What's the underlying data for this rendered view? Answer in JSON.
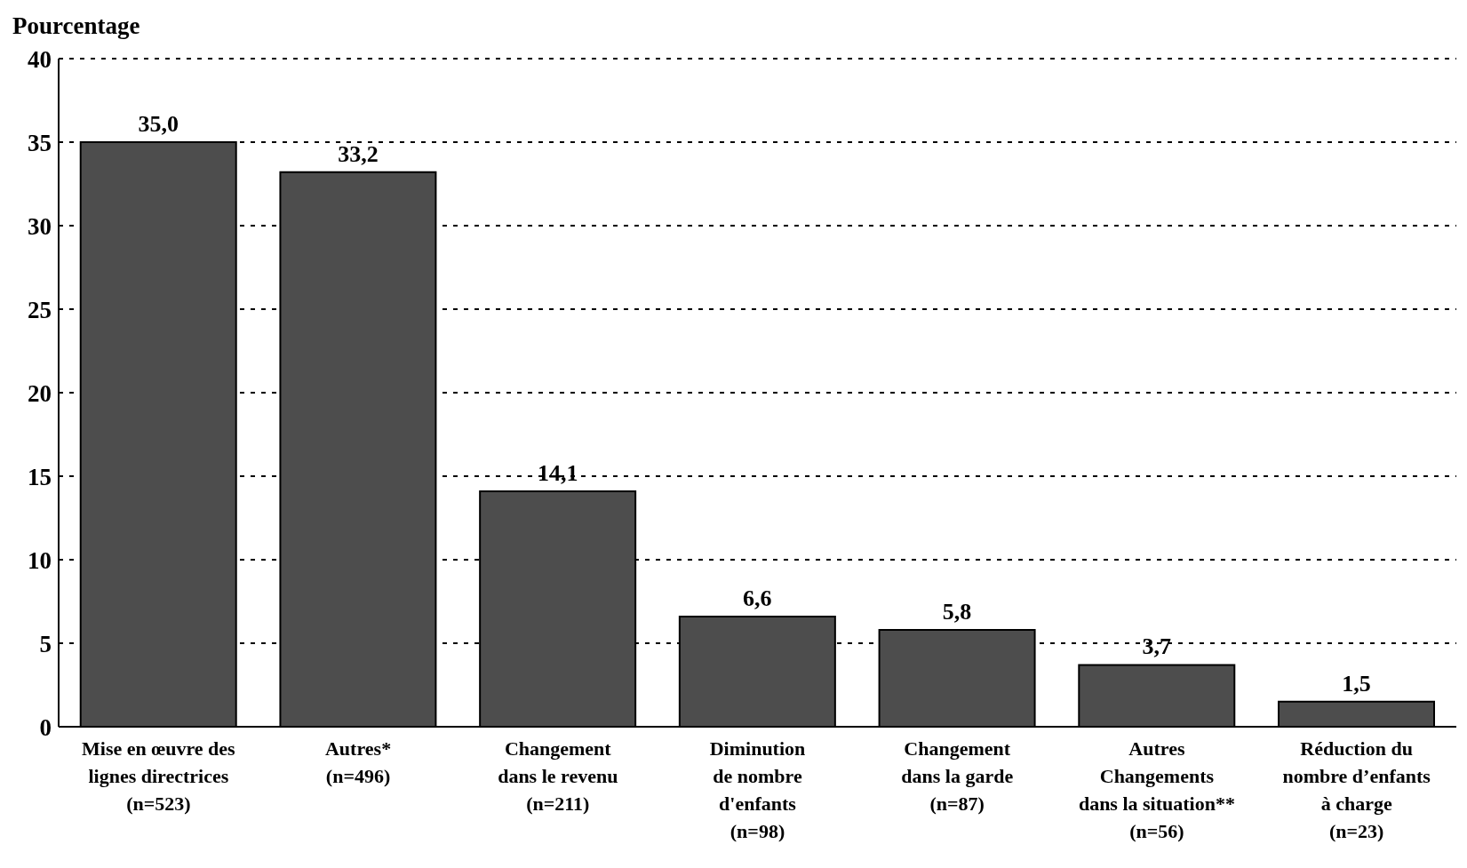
{
  "chart_data": {
    "type": "bar",
    "ylabel": "Pourcentage",
    "categories": [
      "Mise en œuvre des\nlignes directrices\n(n=523)",
      "Autres*\n(n=496)",
      "Changement\ndans le revenu\n(n=211)",
      "Diminution\nde nombre\nd'enfants\n(n=98)",
      "Changement\ndans la garde\n(n=87)",
      "Autres\nChangements\ndans la situation**\n(n=56)",
      "Réduction du\nnombre d’enfants\nà charge\n(n=23)"
    ],
    "values": [
      35.0,
      33.2,
      14.1,
      6.6,
      5.8,
      3.7,
      1.5
    ],
    "value_labels": [
      "35,0",
      "33,2",
      "14,1",
      "6,6",
      "5,8",
      "3,7",
      "1,5"
    ],
    "color": "#4d4d4d",
    "ylim": [
      0,
      40
    ],
    "yticks": [
      0,
      5,
      10,
      15,
      20,
      25,
      30,
      35,
      40
    ],
    "grid": "y"
  }
}
